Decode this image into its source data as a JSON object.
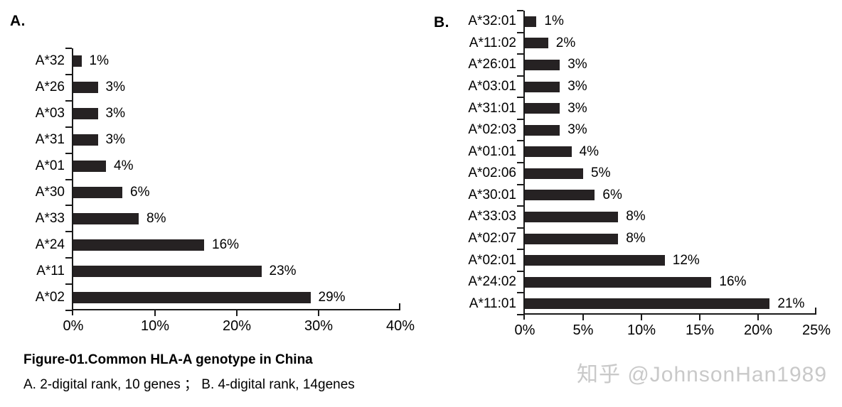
{
  "caption": {
    "title": "Figure-01.Common HLA-A genotype in China",
    "subtitle": "A. 2-digital rank, 10 genes ； B. 4-digital rank, 14genes"
  },
  "watermark": {
    "text": "知乎 @JohnsonHan1989"
  },
  "colors": {
    "bar_color": "#262223",
    "axis_color": "#1a1a1a",
    "text_color": "#000000",
    "watermark_color": "#c9c9c9",
    "background": "#ffffff"
  },
  "chart_data": [
    {
      "type": "bar",
      "orientation": "horizontal",
      "panel_label": "A.",
      "categories": [
        "A*32",
        "A*26",
        "A*03",
        "A*31",
        "A*01",
        "A*30",
        "A*33",
        "A*24",
        "A*11",
        "A*02"
      ],
      "values": [
        1,
        3,
        3,
        3,
        4,
        6,
        8,
        16,
        23,
        29
      ],
      "value_labels": [
        "1%",
        "3%",
        "3%",
        "3%",
        "4%",
        "6%",
        "8%",
        "16%",
        "23%",
        "29%"
      ],
      "xlim": [
        0,
        40
      ],
      "x_ticks": [
        0,
        10,
        20,
        30,
        40
      ],
      "x_tick_labels": [
        "0%",
        "10%",
        "20%",
        "30%",
        "40%"
      ],
      "grid": false,
      "legend": false
    },
    {
      "type": "bar",
      "orientation": "horizontal",
      "panel_label": "B.",
      "categories": [
        "A*32:01",
        "A*11:02",
        "A*26:01",
        "A*03:01",
        "A*31:01",
        "A*02:03",
        "A*01:01",
        "A*02:06",
        "A*30:01",
        "A*33:03",
        "A*02:07",
        "A*02:01",
        "A*24:02",
        "A*11:01"
      ],
      "values": [
        1,
        2,
        3,
        3,
        3,
        3,
        4,
        5,
        6,
        8,
        8,
        12,
        16,
        21
      ],
      "value_labels": [
        "1%",
        "2%",
        "3%",
        "3%",
        "3%",
        "3%",
        "4%",
        "5%",
        "6%",
        "8%",
        "8%",
        "12%",
        "16%",
        "21%"
      ],
      "xlim": [
        0,
        25
      ],
      "x_ticks": [
        0,
        5,
        10,
        15,
        20,
        25
      ],
      "x_tick_labels": [
        "0%",
        "5%",
        "10%",
        "15%",
        "20%",
        "25%"
      ],
      "grid": false,
      "legend": false
    }
  ]
}
